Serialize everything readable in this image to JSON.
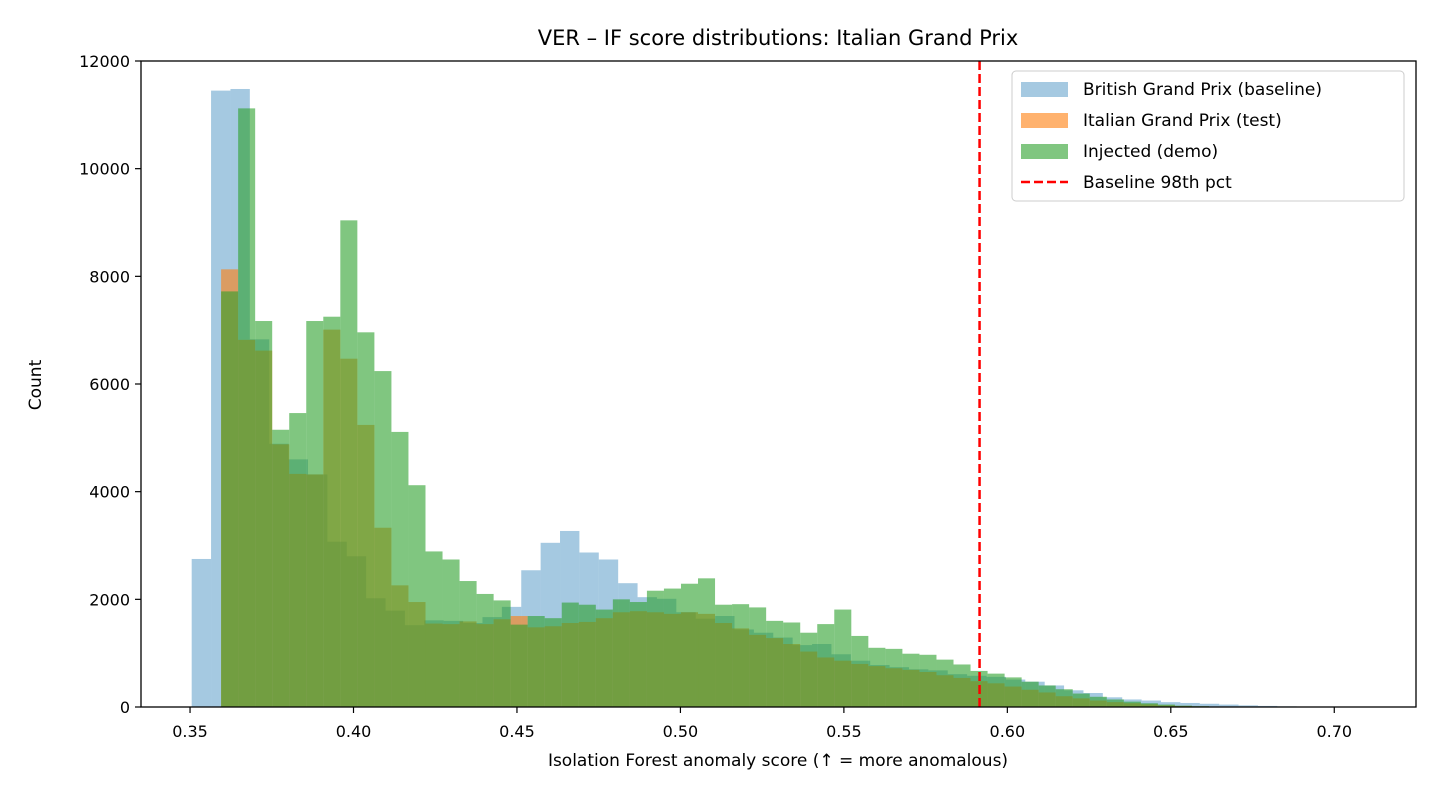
{
  "chart_data": {
    "type": "histogram",
    "title": "VER – IF score distributions: Italian Grand Prix",
    "xlabel": "Isolation Forest anomaly score (↑ = more anomalous)",
    "ylabel": "Count",
    "xlim": [
      0.335,
      0.725
    ],
    "ylim": [
      0,
      12000
    ],
    "xticks": [
      "0.35",
      "0.40",
      "0.45",
      "0.50",
      "0.55",
      "0.60",
      "0.65",
      "0.70"
    ],
    "yticks": [
      "0",
      "2000",
      "4000",
      "6000",
      "8000",
      "10000",
      "12000"
    ],
    "legend_position": "top-right",
    "grid": false,
    "series": [
      {
        "name": "British Grand Prix (baseline)",
        "color": "#1f77b4",
        "opacity": 0.4,
        "bin_start": 0.3505,
        "bin_width": 0.00593,
        "values": [
          2750,
          11450,
          11480,
          6830,
          4890,
          4600,
          4320,
          3070,
          2800,
          2020,
          1790,
          1520,
          1610,
          1600,
          1560,
          1670,
          1860,
          2540,
          3050,
          3270,
          2870,
          2740,
          2300,
          2040,
          2010,
          1760,
          1640,
          1690,
          1440,
          1380,
          1290,
          1150,
          1170,
          980,
          860,
          780,
          740,
          700,
          680,
          610,
          580,
          560,
          510,
          470,
          400,
          310,
          260,
          180,
          140,
          120,
          90,
          75,
          60,
          45,
          30,
          20,
          12,
          8,
          5,
          3
        ]
      },
      {
        "name": "Italian Grand Prix (test)",
        "color": "#ff7f0e",
        "opacity": 0.6,
        "bin_start": 0.3595,
        "bin_width": 0.00521,
        "values": [
          8130,
          6820,
          6620,
          4880,
          4330,
          4320,
          7010,
          6470,
          5240,
          3330,
          2260,
          1950,
          1550,
          1540,
          1590,
          1540,
          1630,
          1690,
          1480,
          1500,
          1560,
          1580,
          1650,
          1760,
          1780,
          1760,
          1730,
          1760,
          1730,
          1560,
          1460,
          1340,
          1280,
          1170,
          1030,
          920,
          860,
          800,
          760,
          720,
          690,
          650,
          590,
          540,
          480,
          440,
          380,
          320,
          270,
          200,
          160,
          120,
          90,
          70,
          50,
          30,
          20,
          12,
          8
        ]
      },
      {
        "name": "Injected (demo)",
        "color": "#2ca02c",
        "opacity": 0.6,
        "bin_start": 0.3595,
        "bin_width": 0.00521,
        "values": [
          7720,
          11120,
          7170,
          5150,
          5460,
          7170,
          7250,
          9040,
          6960,
          6240,
          5110,
          4120,
          2890,
          2740,
          2340,
          2100,
          1980,
          1530,
          1690,
          1650,
          1940,
          1900,
          1810,
          2000,
          1950,
          2160,
          2200,
          2290,
          2390,
          1900,
          1910,
          1850,
          1600,
          1570,
          1380,
          1540,
          1810,
          1320,
          1100,
          1080,
          990,
          970,
          880,
          790,
          670,
          620,
          550,
          470,
          400,
          330,
          250,
          190,
          140,
          100,
          70,
          45,
          25,
          15,
          8
        ]
      }
    ],
    "threshold": {
      "name": "Baseline 98th pct",
      "value": 0.5915,
      "color": "#ff0000"
    }
  }
}
